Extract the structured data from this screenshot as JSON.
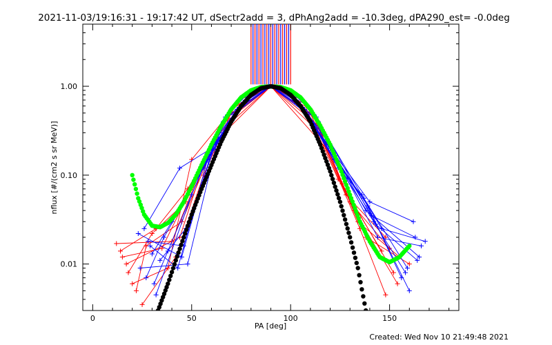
{
  "chart_data": {
    "type": "line",
    "title": "2021-11-03/19:16:31 - 19:17:42 UT, dSectr2add = 3, dPhAng2add = -10.3deg, dPA290_est= -0.0deg",
    "xlabel": "PA [deg]",
    "ylabel": "nflux [#/(cm2 s sr MeV)]",
    "xlim": [
      -5,
      185
    ],
    "ylim": [
      0.003,
      5.0
    ],
    "y_scale": "log",
    "x_ticks": [
      0,
      50,
      100,
      150
    ],
    "x_tick_labels": [
      "0",
      "50",
      "100",
      "150"
    ],
    "y_ticks": [
      0.01,
      0.1,
      1.0
    ],
    "y_tick_labels": [
      "0.01",
      "0.10",
      "1.00"
    ],
    "grid": false,
    "legend": "none",
    "colors": {
      "red_series": "#ff0000",
      "blue_series": "#0000ff",
      "fit_green": "#00ff00",
      "fit_black": "#000000",
      "axes": "#000000"
    },
    "series": [
      {
        "style": "red-crosses-lines",
        "color": "#ff0000",
        "lines": [
          {
            "x": [
              12,
              40,
              55,
              70,
              90,
              110,
              128,
              148
            ],
            "y": [
              0.017,
              0.018,
              0.12,
              0.55,
              1.0,
              0.55,
              0.06,
              0.02
            ]
          },
          {
            "x": [
              15,
              35,
              52,
              68,
              90,
              112,
              130,
              150
            ],
            "y": [
              0.012,
              0.015,
              0.09,
              0.45,
              1.0,
              0.45,
              0.05,
              0.015
            ]
          },
          {
            "x": [
              18,
              30,
              47,
              66,
              90,
              114,
              134,
              155
            ],
            "y": [
              0.008,
              0.022,
              0.05,
              0.38,
              1.0,
              0.36,
              0.03,
              0.012
            ]
          },
          {
            "x": [
              20,
              38,
              50,
              72,
              90,
              108,
              126,
              152
            ],
            "y": [
              0.006,
              0.009,
              0.15,
              0.6,
              1.0,
              0.62,
              0.08,
              0.008
            ]
          },
          {
            "x": [
              22,
              27,
              45,
              64,
              90,
              116,
              132,
              154
            ],
            "y": [
              0.005,
              0.016,
              0.03,
              0.3,
              1.0,
              0.28,
              0.04,
              0.006
            ]
          },
          {
            "x": [
              25,
              42,
              56,
              70,
              90,
              110,
              135,
              148
            ],
            "y": [
              0.0035,
              0.012,
              0.1,
              0.5,
              1.0,
              0.5,
              0.025,
              0.0045
            ]
          },
          {
            "x": [
              14,
              32,
              48,
              62,
              90,
              118,
              138,
              160
            ],
            "y": [
              0.014,
              0.025,
              0.07,
              0.24,
              1.0,
              0.2,
              0.02,
              0.01
            ]
          },
          {
            "x": [
              17,
              44,
              58,
              74,
              90,
              106,
              124,
              146
            ],
            "y": [
              0.01,
              0.02,
              0.18,
              0.7,
              1.0,
              0.7,
              0.09,
              0.014
            ]
          }
        ]
      },
      {
        "style": "blue-crosses-lines",
        "color": "#0000ff",
        "lines": [
          {
            "x": [
              26,
              44,
              60,
              75,
              90,
              105,
              120,
              140,
              162
            ],
            "y": [
              0.025,
              0.12,
              0.2,
              0.6,
              1.0,
              0.6,
              0.2,
              0.05,
              0.03
            ]
          },
          {
            "x": [
              28,
              46,
              62,
              76,
              90,
              104,
              118,
              138,
              165
            ],
            "y": [
              0.018,
              0.016,
              0.25,
              0.66,
              1.0,
              0.66,
              0.25,
              0.04,
              0.012
            ]
          },
          {
            "x": [
              30,
              40,
              58,
              73,
              90,
              107,
              122,
              142,
              158
            ],
            "y": [
              0.013,
              0.03,
              0.15,
              0.55,
              1.0,
              0.55,
              0.15,
              0.03,
              0.008
            ]
          },
          {
            "x": [
              24,
              48,
              64,
              78,
              90,
              102,
              116,
              144,
              166
            ],
            "y": [
              0.009,
              0.01,
              0.3,
              0.75,
              1.0,
              0.75,
              0.3,
              0.02,
              0.016
            ]
          },
          {
            "x": [
              27,
              36,
              56,
              72,
              90,
              108,
              124,
              136,
              160
            ],
            "y": [
              0.007,
              0.02,
              0.12,
              0.5,
              1.0,
              0.5,
              0.12,
              0.06,
              0.005
            ]
          },
          {
            "x": [
              32,
              50,
              66,
              80,
              90,
              100,
              114,
              146,
              168
            ],
            "y": [
              0.0045,
              0.06,
              0.4,
              0.8,
              1.0,
              0.8,
              0.4,
              0.025,
              0.018
            ]
          },
          {
            "x": [
              23,
              45,
              61,
              77,
              90,
              103,
              119,
              141,
              163
            ],
            "y": [
              0.022,
              0.012,
              0.22,
              0.64,
              1.0,
              0.64,
              0.22,
              0.035,
              0.02
            ]
          },
          {
            "x": [
              29,
              43,
              59,
              74,
              90,
              106,
              121,
              139,
              156
            ],
            "y": [
              0.016,
              0.009,
              0.18,
              0.58,
              1.0,
              0.58,
              0.18,
              0.045,
              0.007
            ]
          },
          {
            "x": [
              34,
              47,
              67,
              79,
              90,
              101,
              113,
              143,
              164
            ],
            "y": [
              0.011,
              0.025,
              0.45,
              0.85,
              1.0,
              0.85,
              0.45,
              0.028,
              0.011
            ]
          },
          {
            "x": [
              31,
              38,
              57,
              71,
              90,
              109,
              123,
              137,
              159
            ],
            "y": [
              0.006,
              0.014,
              0.14,
              0.48,
              1.0,
              0.48,
              0.14,
              0.055,
              0.009
            ]
          }
        ]
      },
      {
        "style": "green-dots",
        "color": "#00ff00",
        "x": [
          20,
          23,
          26,
          30,
          34,
          38,
          42,
          46,
          50,
          55,
          60,
          65,
          70,
          75,
          80,
          85,
          90,
          95,
          100,
          105,
          110,
          115,
          120,
          125,
          130,
          135,
          140,
          145,
          150,
          155,
          160
        ],
        "y": [
          0.1,
          0.055,
          0.036,
          0.027,
          0.026,
          0.029,
          0.036,
          0.05,
          0.075,
          0.13,
          0.22,
          0.36,
          0.55,
          0.75,
          0.9,
          0.98,
          1.0,
          0.98,
          0.9,
          0.75,
          0.55,
          0.36,
          0.22,
          0.12,
          0.06,
          0.03,
          0.018,
          0.012,
          0.0105,
          0.012,
          0.016
        ]
      },
      {
        "style": "black-dots",
        "color": "#000000",
        "x": [
          33,
          38,
          42,
          46,
          50,
          55,
          60,
          65,
          70,
          75,
          80,
          85,
          90,
          95,
          100,
          105,
          110,
          115,
          120,
          125,
          130,
          134,
          138
        ],
        "y": [
          0.003,
          0.006,
          0.011,
          0.02,
          0.036,
          0.07,
          0.13,
          0.24,
          0.4,
          0.6,
          0.8,
          0.95,
          1.0,
          0.95,
          0.8,
          0.6,
          0.4,
          0.22,
          0.11,
          0.05,
          0.02,
          0.009,
          0.003
        ]
      },
      {
        "style": "vertical-lines",
        "colors": [
          "#ff0000",
          "#0000ff"
        ],
        "x": [
          80,
          81,
          82,
          83,
          84,
          85,
          86,
          87,
          88,
          89,
          90,
          91,
          92,
          93,
          94,
          95,
          96,
          97,
          98,
          99,
          100
        ],
        "y_from": 1.05,
        "y_to": 5.0
      }
    ]
  },
  "footer": {
    "created": "Created: Wed Nov 10 21:49:48 2021"
  }
}
